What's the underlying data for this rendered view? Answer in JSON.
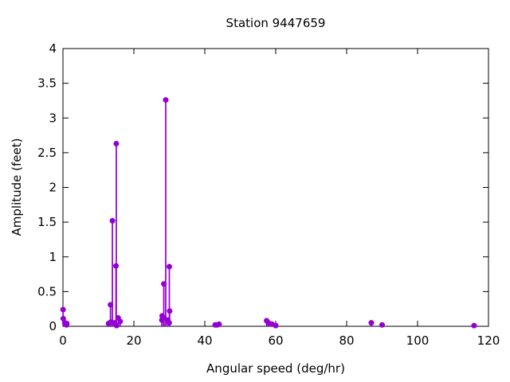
{
  "chart_data": {
    "type": "scatter",
    "style": "impulses+points",
    "title": "Station 9447659",
    "xlabel": "Angular speed (deg/hr)",
    "ylabel": "Amplitude (feet)",
    "xlim": [
      0,
      120
    ],
    "ylim": [
      0,
      4
    ],
    "xticks": [
      0,
      20,
      40,
      60,
      80,
      100,
      120
    ],
    "yticks": [
      0,
      0.5,
      1,
      1.5,
      2,
      2.5,
      3,
      3.5,
      4
    ],
    "grid": false,
    "legend_position": "none",
    "series_color": "#9400d3",
    "axis_color": "#000000",
    "points": [
      {
        "x": 0.041,
        "y": 0.24
      },
      {
        "x": 0.082,
        "y": 0.11
      },
      {
        "x": 0.544,
        "y": 0.05
      },
      {
        "x": 1.016,
        "y": 0.02
      },
      {
        "x": 1.098,
        "y": 0.04
      },
      {
        "x": 12.854,
        "y": 0.04
      },
      {
        "x": 13.399,
        "y": 0.31
      },
      {
        "x": 13.472,
        "y": 0.06
      },
      {
        "x": 13.943,
        "y": 1.52
      },
      {
        "x": 14.497,
        "y": 0.05
      },
      {
        "x": 14.959,
        "y": 0.87
      },
      {
        "x": 15.041,
        "y": 2.63
      },
      {
        "x": 15.123,
        "y": 0.01
      },
      {
        "x": 15.585,
        "y": 0.12
      },
      {
        "x": 16.139,
        "y": 0.07
      },
      {
        "x": 27.895,
        "y": 0.09
      },
      {
        "x": 27.968,
        "y": 0.15
      },
      {
        "x": 28.44,
        "y": 0.61
      },
      {
        "x": 28.513,
        "y": 0.12
      },
      {
        "x": 28.984,
        "y": 3.26
      },
      {
        "x": 29.528,
        "y": 0.09
      },
      {
        "x": 29.959,
        "y": 0.05
      },
      {
        "x": 30.0,
        "y": 0.86
      },
      {
        "x": 30.082,
        "y": 0.22
      },
      {
        "x": 42.927,
        "y": 0.02
      },
      {
        "x": 43.476,
        "y": 0.02
      },
      {
        "x": 44.025,
        "y": 0.03
      },
      {
        "x": 57.424,
        "y": 0.08
      },
      {
        "x": 57.968,
        "y": 0.05
      },
      {
        "x": 58.984,
        "y": 0.03
      },
      {
        "x": 60.0,
        "y": 0.01
      },
      {
        "x": 86.952,
        "y": 0.05
      },
      {
        "x": 90.0,
        "y": 0.02
      },
      {
        "x": 115.936,
        "y": 0.01
      }
    ]
  }
}
